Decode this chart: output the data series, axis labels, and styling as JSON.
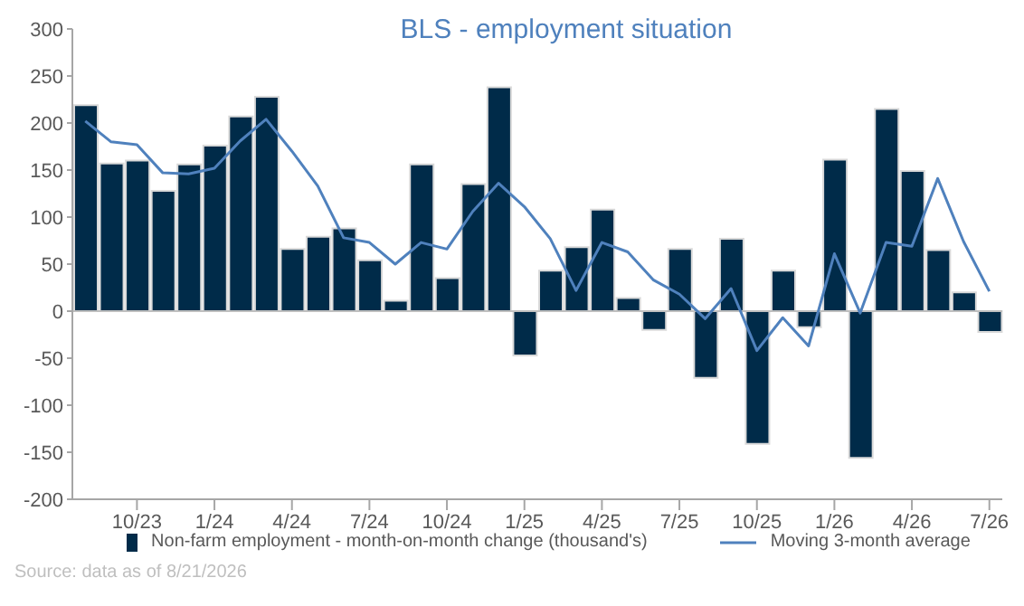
{
  "chart_data": {
    "type": "bar",
    "title": "BLS - employment situation",
    "categories": [
      null,
      null,
      "10/23",
      null,
      null,
      "1/24",
      null,
      null,
      "4/24",
      null,
      null,
      "7/24",
      null,
      null,
      "10/24",
      null,
      null,
      "1/25",
      null,
      null,
      "4/25",
      null,
      null,
      "7/25",
      null,
      null,
      "10/25",
      null,
      null,
      "1/26",
      null,
      null,
      "4/26",
      null,
      null,
      "7/26"
    ],
    "series": [
      {
        "name": "Non-farm employment - month-on-month change (thousand's)",
        "color": "#002b49",
        "values": [
          219,
          157,
          160,
          128,
          156,
          176,
          207,
          228,
          66,
          79,
          88,
          54,
          11,
          156,
          35,
          135,
          238,
          -47,
          43,
          68,
          108,
          14,
          -20,
          66,
          -71,
          77,
          -141,
          43,
          -17,
          161,
          -156,
          215,
          149,
          65,
          20,
          -22
        ]
      },
      {
        "name": "Moving 3-month average",
        "type": "line",
        "color": "#4f81bd",
        "values": [
          202,
          180,
          177,
          147,
          146,
          152,
          181,
          204,
          170,
          133,
          78,
          73,
          50,
          73,
          66,
          106,
          136,
          111,
          77,
          22,
          73,
          63,
          33,
          18,
          -8,
          24,
          -42,
          -7,
          -37,
          61,
          -2,
          73,
          69,
          141,
          74,
          21
        ]
      }
    ],
    "ylim": [
      -200,
      300
    ],
    "yticks": [
      -200,
      -150,
      -100,
      -50,
      0,
      50,
      100,
      150,
      200,
      250,
      300
    ],
    "ref_lines": [
      {
        "axis": "y",
        "value": 0,
        "color": "#bfbfbf"
      }
    ],
    "grid": false,
    "legend": "bottom",
    "marker": "none",
    "line_style": "solid",
    "annotations": [
      "Source: data as of 8/21/2026"
    ]
  }
}
